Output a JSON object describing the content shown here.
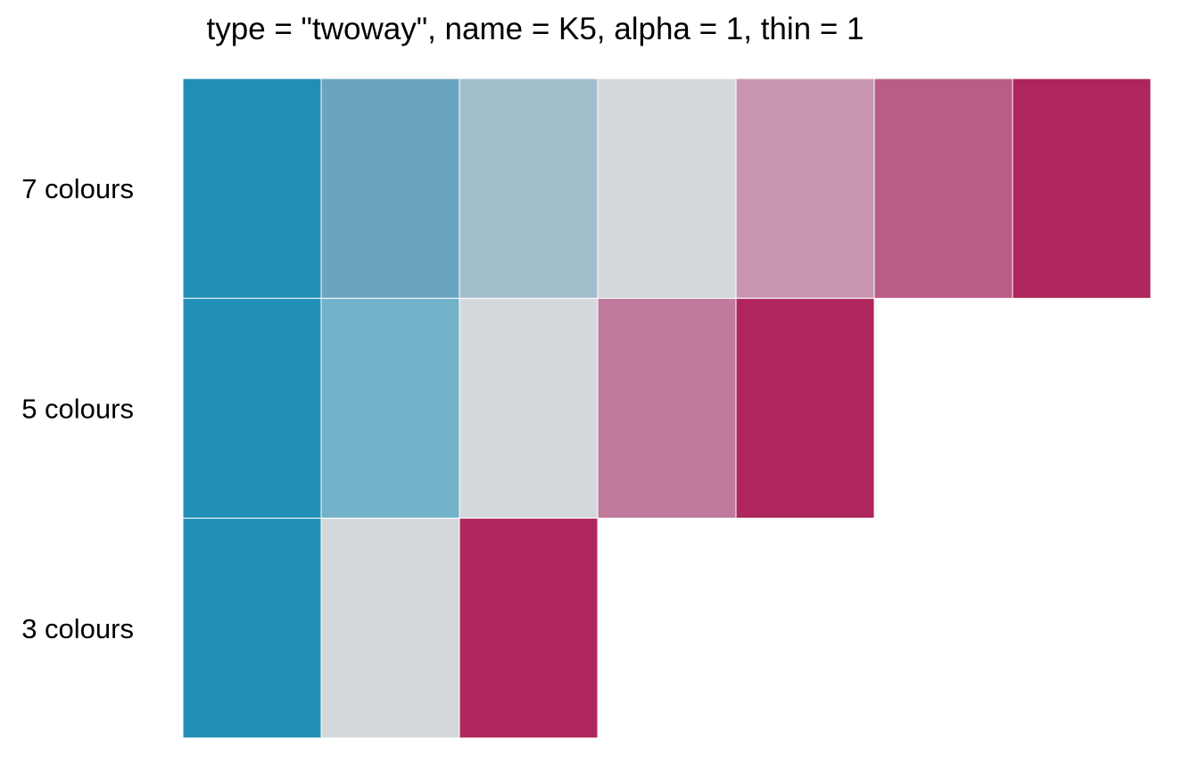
{
  "chart_data": {
    "type": "heatmap",
    "title": "type = \"twoway\", name = K5, alpha = 1, thin = 1",
    "rows": [
      {
        "label": "7 colours",
        "colors": [
          "#228fb6",
          "#6aa4bf",
          "#a2bdcb",
          "#d4d7dc",
          "#c896b1",
          "#ba5d86",
          "#ae265c"
        ]
      },
      {
        "label": "5 colours",
        "colors": [
          "#228fb6",
          "#73b2c8",
          "#d4d7dc",
          "#c07a9b",
          "#ae265c"
        ]
      },
      {
        "label": "3 colours",
        "colors": [
          "#228fb6",
          "#d4d7dc",
          "#ae265c"
        ]
      }
    ]
  }
}
